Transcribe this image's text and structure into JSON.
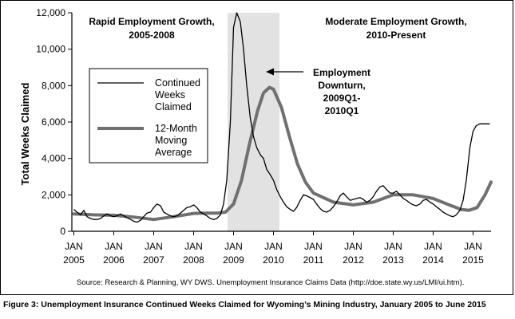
{
  "chart_data": {
    "type": "line",
    "title": "",
    "ylabel": "Total Weeks Claimed",
    "xlabel": "",
    "ylim": [
      0,
      12000
    ],
    "yticks": [
      0,
      2000,
      4000,
      6000,
      8000,
      10000,
      12000
    ],
    "ytick_labels": [
      "0",
      "2,000",
      "4,000",
      "6,000",
      "8,000",
      "10,000",
      "12,000"
    ],
    "xlim": [
      2004.95,
      2015.45
    ],
    "xticks": [
      {
        "pos": 2005,
        "line1": "JAN",
        "line2": "2005"
      },
      {
        "pos": 2006,
        "line1": "JAN",
        "line2": "2006"
      },
      {
        "pos": 2007,
        "line1": "JAN",
        "line2": "2007"
      },
      {
        "pos": 2008,
        "line1": "JAN",
        "line2": "2008"
      },
      {
        "pos": 2009,
        "line1": "JAN",
        "line2": "2009"
      },
      {
        "pos": 2010,
        "line1": "JAN",
        "line2": "2010"
      },
      {
        "pos": 2011,
        "line1": "JAN",
        "line2": "2011"
      },
      {
        "pos": 2012,
        "line1": "JAN",
        "line2": "2012"
      },
      {
        "pos": 2013,
        "line1": "JAN",
        "line2": "2013"
      },
      {
        "pos": 2014,
        "line1": "JAN",
        "line2": "2014"
      },
      {
        "pos": 2015,
        "line1": "JAN",
        "line2": "2015"
      }
    ],
    "shaded_region": {
      "start": 2008.85,
      "end": 2010.15,
      "color": "#e2e2e2"
    },
    "annotations": {
      "rapid_line1": "Rapid Employment Growth,",
      "rapid_line2": "2005-2008",
      "moderate_line1": "Moderate Employment Growth,",
      "moderate_line2": "2010-Present",
      "downturn_line1": "Employment",
      "downturn_line2": "Downturn,",
      "downturn_line3": "2009Q1-",
      "downturn_line4": "2010Q1"
    },
    "legend": {
      "placement": "upper-left",
      "items": [
        {
          "line1": "Continued",
          "line2": "Weeks",
          "line3": "Claimed"
        },
        {
          "line1": "12-Month",
          "line2": "Moving",
          "line3": "Average"
        }
      ]
    },
    "series": [
      {
        "name": "Continued Weeks Claimed",
        "color": "#000000",
        "x": [
          2005.0,
          2005.08,
          2005.17,
          2005.25,
          2005.33,
          2005.42,
          2005.5,
          2005.58,
          2005.67,
          2005.75,
          2005.83,
          2005.92,
          2006.0,
          2006.08,
          2006.17,
          2006.25,
          2006.33,
          2006.42,
          2006.5,
          2006.58,
          2006.67,
          2006.75,
          2006.83,
          2006.92,
          2007.0,
          2007.08,
          2007.17,
          2007.25,
          2007.33,
          2007.42,
          2007.5,
          2007.58,
          2007.67,
          2007.75,
          2007.83,
          2007.92,
          2008.0,
          2008.08,
          2008.17,
          2008.25,
          2008.33,
          2008.42,
          2008.5,
          2008.58,
          2008.67,
          2008.75,
          2008.83,
          2008.92,
          2009.0,
          2009.08,
          2009.17,
          2009.25,
          2009.33,
          2009.42,
          2009.5,
          2009.58,
          2009.67,
          2009.75,
          2009.83,
          2009.92,
          2010.0,
          2010.08,
          2010.17,
          2010.25,
          2010.33,
          2010.42,
          2010.5,
          2010.58,
          2010.67,
          2010.75,
          2010.83,
          2010.92,
          2011.0,
          2011.08,
          2011.17,
          2011.25,
          2011.33,
          2011.42,
          2011.5,
          2011.58,
          2011.67,
          2011.75,
          2011.83,
          2011.92,
          2012.0,
          2012.08,
          2012.17,
          2012.25,
          2012.33,
          2012.42,
          2012.5,
          2012.58,
          2012.67,
          2012.75,
          2012.83,
          2012.92,
          2013.0,
          2013.08,
          2013.17,
          2013.25,
          2013.33,
          2013.42,
          2013.5,
          2013.58,
          2013.67,
          2013.75,
          2013.83,
          2013.92,
          2014.0,
          2014.08,
          2014.17,
          2014.25,
          2014.33,
          2014.42,
          2014.5,
          2014.58,
          2014.67,
          2014.75,
          2014.83,
          2014.92,
          2015.0,
          2015.08,
          2015.17,
          2015.25,
          2015.33,
          2015.42
        ],
        "values": [
          1200,
          1050,
          900,
          1150,
          800,
          700,
          650,
          650,
          700,
          850,
          950,
          850,
          800,
          850,
          950,
          850,
          750,
          650,
          550,
          500,
          600,
          800,
          1000,
          1050,
          1300,
          1500,
          1400,
          1050,
          950,
          850,
          800,
          850,
          1000,
          1150,
          1300,
          1350,
          1450,
          1300,
          1050,
          950,
          850,
          700,
          650,
          700,
          900,
          1500,
          2800,
          6000,
          11200,
          12000,
          11500,
          10000,
          8000,
          6200,
          5200,
          4600,
          4200,
          4000,
          3400,
          3100,
          2800,
          2300,
          1900,
          1600,
          1350,
          1200,
          1100,
          1300,
          1700,
          2000,
          1950,
          1850,
          1750,
          1500,
          1250,
          1100,
          1050,
          1150,
          1350,
          1600,
          1950,
          2100,
          1900,
          1700,
          1750,
          1800,
          1850,
          1750,
          1600,
          1700,
          1900,
          2200,
          2450,
          2500,
          2300,
          2100,
          2100,
          2200,
          2000,
          1800,
          1700,
          1550,
          1450,
          1400,
          1500,
          1700,
          1750,
          1600,
          1500,
          1350,
          1200,
          1050,
          950,
          850,
          800,
          900,
          1150,
          1700,
          2800,
          4600,
          5500,
          5800,
          5900,
          5900,
          5900,
          5900
        ]
      },
      {
        "name": "12-Month Moving Average",
        "color": "#707070",
        "x": [
          2005.0,
          2005.5,
          2006.0,
          2006.5,
          2007.0,
          2007.5,
          2008.0,
          2008.3,
          2008.6,
          2008.8,
          2009.0,
          2009.2,
          2009.4,
          2009.6,
          2009.75,
          2009.9,
          2010.0,
          2010.2,
          2010.4,
          2010.6,
          2010.8,
          2011.0,
          2011.5,
          2012.0,
          2012.5,
          2013.0,
          2013.5,
          2014.0,
          2014.4,
          2014.7,
          2014.9,
          2015.1,
          2015.3,
          2015.45
        ],
        "values": [
          950,
          900,
          880,
          780,
          650,
          800,
          980,
          1000,
          1000,
          1050,
          1500,
          2800,
          4800,
          6600,
          7600,
          7900,
          7800,
          6800,
          5200,
          3700,
          2700,
          2100,
          1600,
          1450,
          1600,
          2000,
          2000,
          1800,
          1450,
          1200,
          1150,
          1300,
          2000,
          2700
        ]
      }
    ]
  },
  "source_note": "Source: Research & Planning, WY DWS. Unemployment Insurance Claims Data (http://doe.state.wy.us/LMI/ui.htm).",
  "figure_caption": "Figure 3: Unemployment Insurance Continued Weeks Claimed for Wyoming’s Mining Industry, January 2005 to June 2015"
}
